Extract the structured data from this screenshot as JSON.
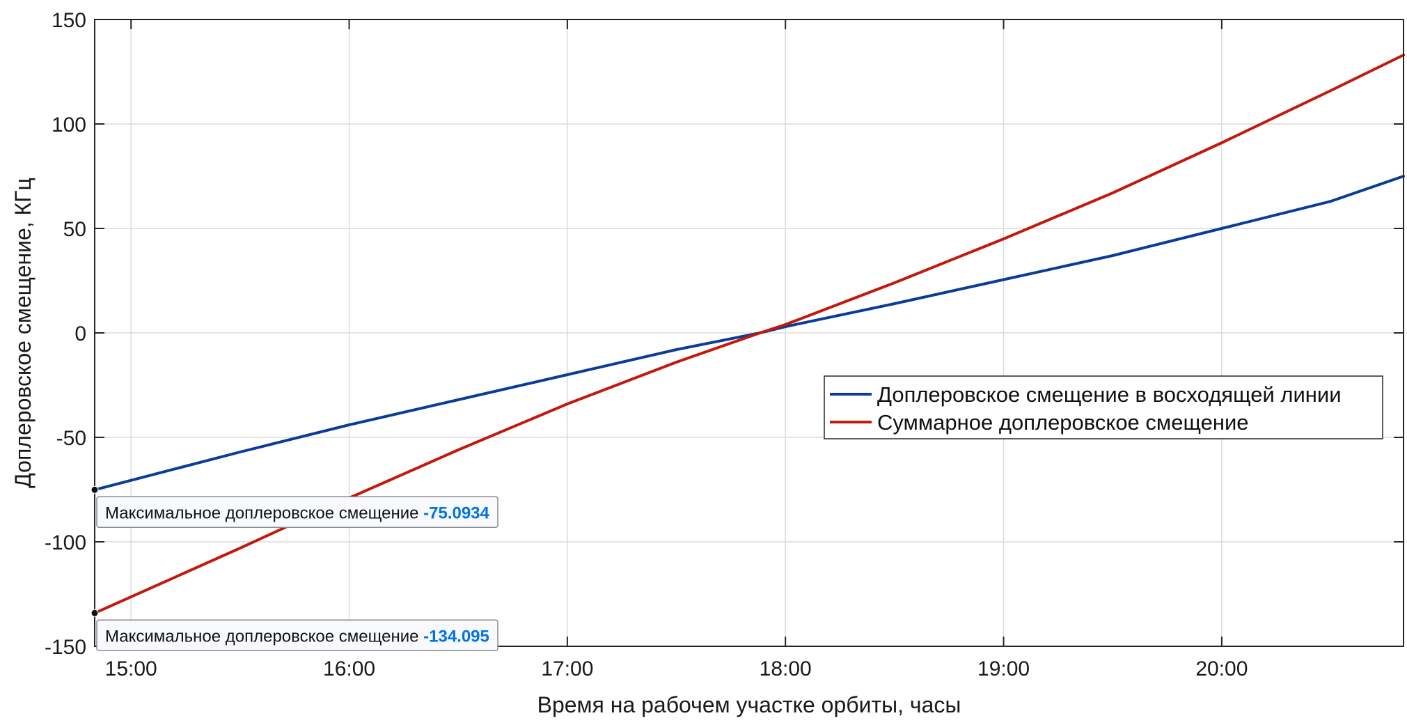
{
  "chart_data": {
    "type": "line",
    "title": "",
    "xlabel": "Время на рабочем участке орбиты, часы",
    "ylabel": "Доплеровское смещение, КГц",
    "xlim": [
      "14:50",
      "20:50"
    ],
    "ylim": [
      -150,
      150
    ],
    "x_ticks": [
      "15:00",
      "16:00",
      "17:00",
      "18:00",
      "19:00",
      "20:00"
    ],
    "y_ticks": [
      150,
      100,
      50,
      0,
      -50,
      -100,
      -150
    ],
    "grid": true,
    "legend_position": "right",
    "series": [
      {
        "name": "Доплеровское смещение в восходящей линии",
        "color": "#0a3d96",
        "x": [
          "14:50",
          "15:30",
          "16:00",
          "16:30",
          "17:00",
          "17:30",
          "17:53",
          "18:00",
          "18:30",
          "19:00",
          "19:30",
          "20:00",
          "20:30",
          "20:50"
        ],
        "y": [
          -75.09,
          -57,
          -44,
          -32,
          -20,
          -8,
          0,
          3,
          14,
          25.5,
          37,
          50,
          63,
          75
        ]
      },
      {
        "name": "Суммарное доплеровское смещение",
        "color": "#c01a0e",
        "x": [
          "14:50",
          "15:30",
          "16:00",
          "16:30",
          "17:00",
          "17:30",
          "17:53",
          "18:00",
          "18:30",
          "19:00",
          "19:30",
          "20:00",
          "20:30",
          "20:50"
        ],
        "y": [
          -134.1,
          -103,
          -79,
          -56,
          -34,
          -14,
          0,
          4,
          24,
          45,
          67,
          91,
          116,
          133
        ]
      }
    ],
    "annotations": [
      {
        "label": "Максимальное доплеровское смещение",
        "value": "-75.0934",
        "x": "14:50",
        "y": -75.0934
      },
      {
        "label": "Максимальное доплеровское смещение",
        "value": "-134.095",
        "x": "14:50",
        "y": -134.095
      }
    ]
  }
}
